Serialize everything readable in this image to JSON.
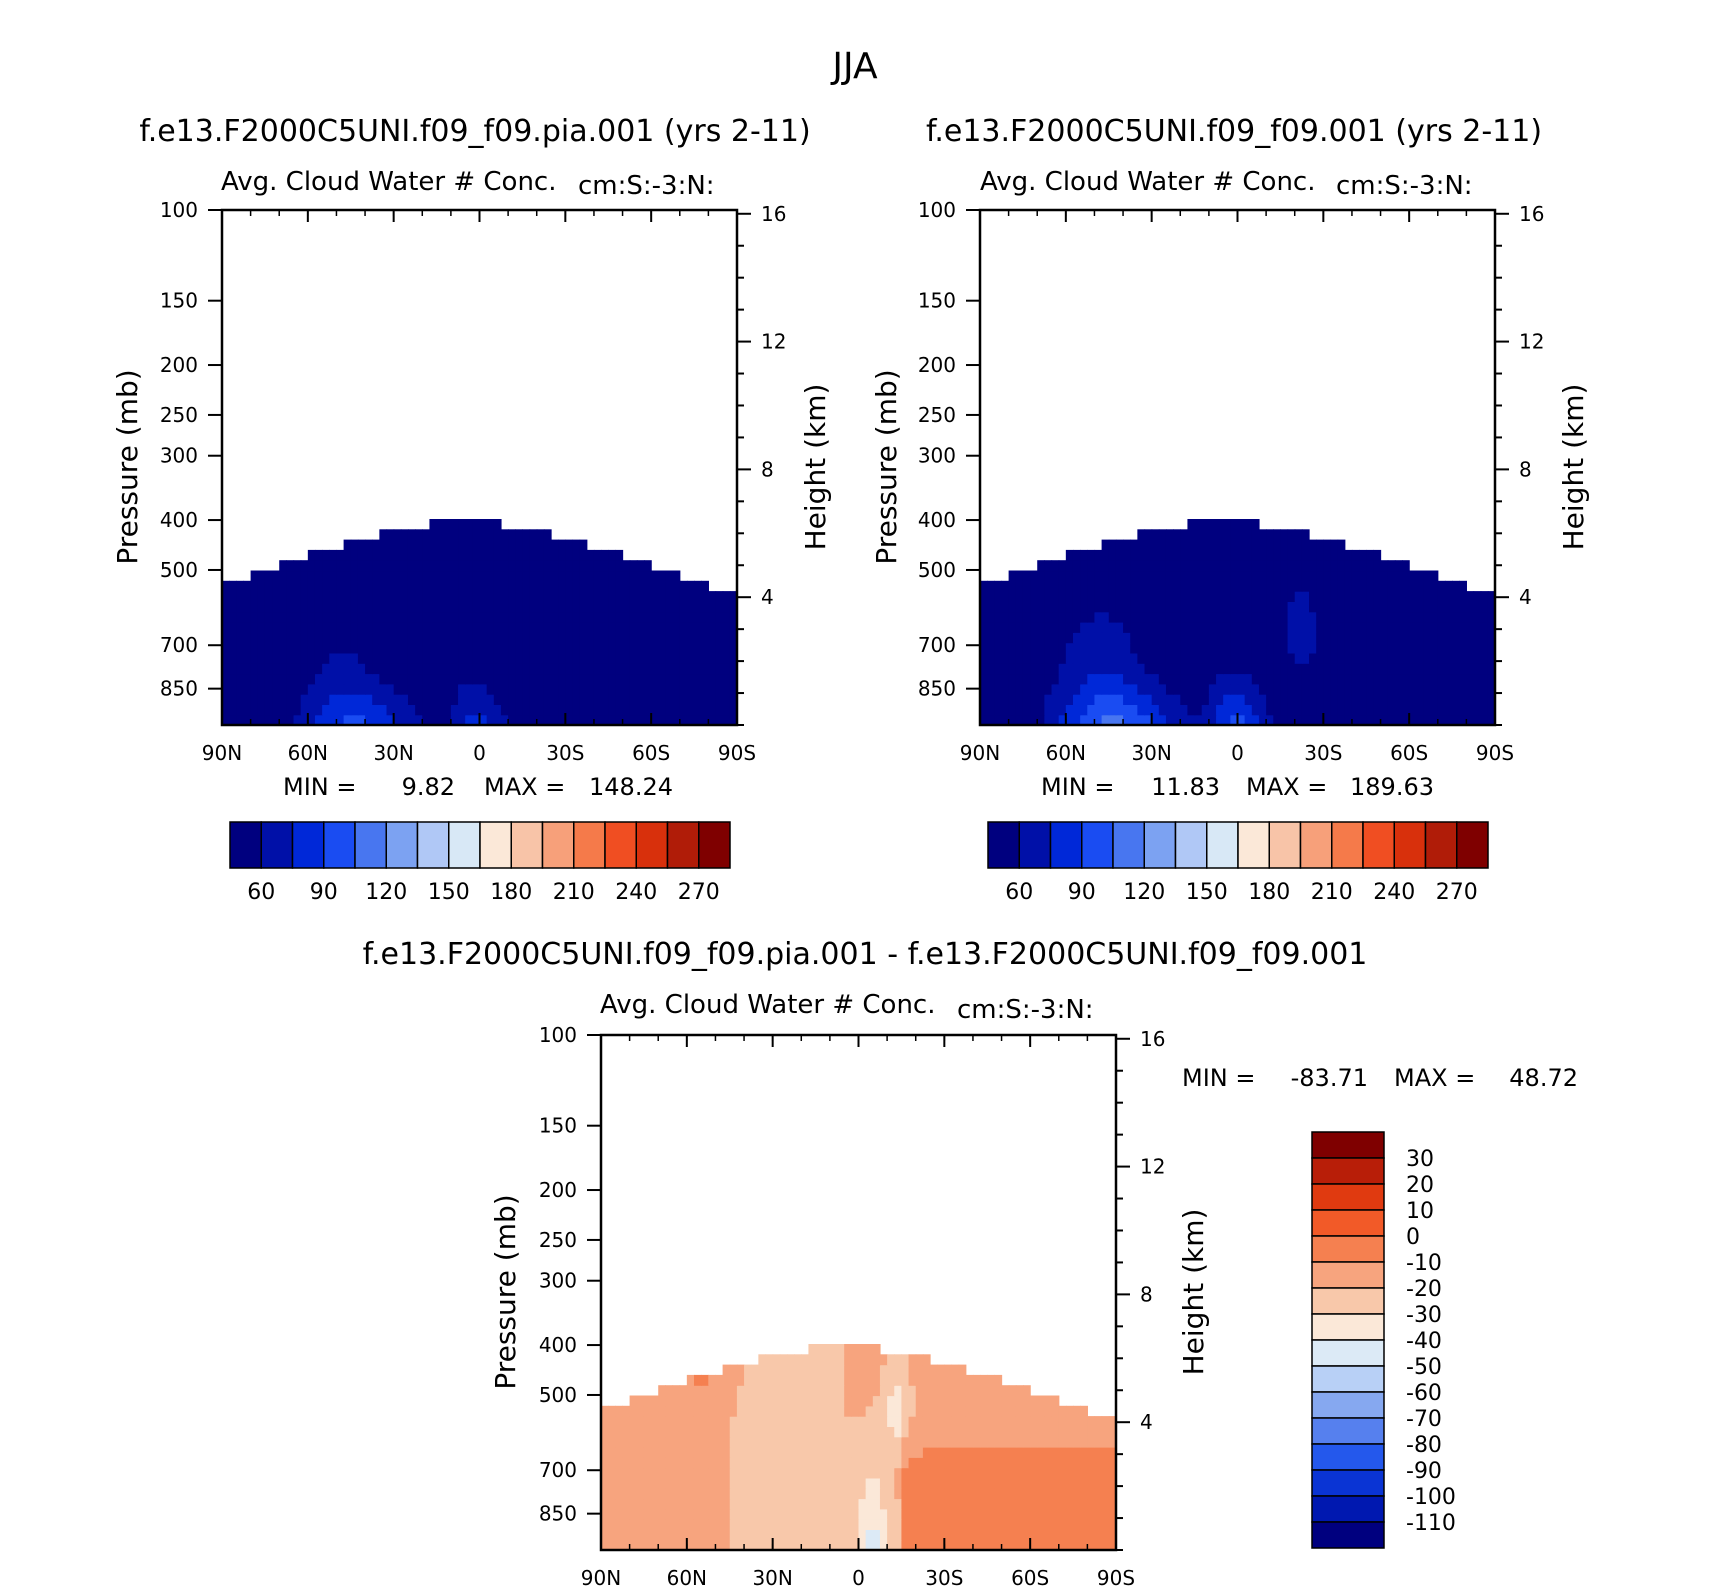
{
  "figure_title": "JJA",
  "top_panels": [
    {
      "case": "f.e13.F2000C5UNI.f09_f09.pia.001 (yrs 2-11)",
      "variable": "Avg. Cloud Water # Conc.",
      "units": "cm:S:-3:N:",
      "min_label": "MIN =",
      "min_value": "9.82",
      "max_label": "MAX =",
      "max_value": "148.24"
    },
    {
      "case": "f.e13.F2000C5UNI.f09_f09.001 (yrs 2-11)",
      "variable": "Avg. Cloud Water # Conc.",
      "units": "cm:S:-3:N:",
      "min_label": "MIN =",
      "min_value": "11.83",
      "max_label": "MAX =",
      "max_value": "189.63"
    }
  ],
  "diff_panel": {
    "case": "f.e13.F2000C5UNI.f09_f09.pia.001 - f.e13.F2000C5UNI.f09_f09.001",
    "variable": "Avg. Cloud Water # Conc.",
    "units": "cm:S:-3:N:",
    "min_label": "MIN =",
    "min_value": "-83.71",
    "max_label": "MAX =",
    "max_value": "48.72"
  },
  "chart_data": [
    {
      "type": "heatmap",
      "title": "Avg. Cloud Water # Conc. (f.e13.F2000C5UNI.f09_f09.pia.001)",
      "xlabel": "",
      "ylabel": "Pressure (mb)",
      "ylabel_right": "Height (km)",
      "x_ticks": [
        "90N",
        "60N",
        "30N",
        "0",
        "30S",
        "60S",
        "90S"
      ],
      "y_ticks": [
        "100",
        "150",
        "200",
        "250",
        "300",
        "400",
        "500",
        "700",
        "850"
      ],
      "height_ticks": [
        "4",
        "8",
        "12",
        "16"
      ],
      "xlim": [
        90,
        -90
      ],
      "ylim": [
        1000,
        100
      ],
      "levels": [
        60,
        90,
        120,
        150,
        180,
        210,
        240,
        270
      ],
      "colorbar_labels": [
        "60",
        "90",
        "120",
        "150",
        "180",
        "210",
        "240",
        "270"
      ],
      "min": 9.82,
      "max": 148.24
    },
    {
      "type": "heatmap",
      "title": "Avg. Cloud Water # Conc. (f.e13.F2000C5UNI.f09_f09.001)",
      "xlabel": "",
      "ylabel": "Pressure (mb)",
      "ylabel_right": "Height (km)",
      "x_ticks": [
        "90N",
        "60N",
        "30N",
        "0",
        "30S",
        "60S",
        "90S"
      ],
      "y_ticks": [
        "100",
        "150",
        "200",
        "250",
        "300",
        "400",
        "500",
        "700",
        "850"
      ],
      "height_ticks": [
        "4",
        "8",
        "12",
        "16"
      ],
      "xlim": [
        90,
        -90
      ],
      "ylim": [
        1000,
        100
      ],
      "levels": [
        60,
        90,
        120,
        150,
        180,
        210,
        240,
        270
      ],
      "colorbar_labels": [
        "60",
        "90",
        "120",
        "150",
        "180",
        "210",
        "240",
        "270"
      ],
      "min": 11.83,
      "max": 189.63
    },
    {
      "type": "heatmap",
      "title": "Avg. Cloud Water # Conc. (difference)",
      "xlabel": "",
      "ylabel": "Pressure (mb)",
      "ylabel_right": "Height (km)",
      "x_ticks": [
        "90N",
        "60N",
        "30N",
        "0",
        "30S",
        "60S",
        "90S"
      ],
      "y_ticks": [
        "100",
        "150",
        "200",
        "250",
        "300",
        "400",
        "500",
        "700",
        "850"
      ],
      "height_ticks": [
        "4",
        "8",
        "12",
        "16"
      ],
      "xlim": [
        90,
        -90
      ],
      "ylim": [
        1000,
        100
      ],
      "levels": [
        -110,
        -100,
        -90,
        -80,
        -70,
        -60,
        -50,
        -40,
        -30,
        -20,
        -10,
        0,
        10,
        20,
        30
      ],
      "colorbar_labels": [
        "30",
        "20",
        "10",
        "0",
        "-10",
        "-20",
        "-30",
        "-40",
        "-50",
        "-60",
        "-70",
        "-80",
        "-90",
        "-100",
        "-110"
      ],
      "min": -83.71,
      "max": 48.72
    }
  ],
  "colors": {
    "abs_palette": [
      "#00007f",
      "#0010a8",
      "#0028d8",
      "#1a4cf2",
      "#4876f0",
      "#7ca2f2",
      "#b0c8f6",
      "#d8e8f6",
      "#fbe8d8",
      "#f8c4a8",
      "#f7a07a",
      "#f57a4a",
      "#f04e22",
      "#d8300c",
      "#b01c08",
      "#7f0000"
    ],
    "diff_palette": [
      "#00007f",
      "#0018b0",
      "#0a34d4",
      "#2458ec",
      "#5680ee",
      "#86a8f0",
      "#b8d0f6",
      "#dceaf6",
      "#fbe8d8",
      "#f8c8aa",
      "#f7a47e",
      "#f58050",
      "#f25a28",
      "#e03a10",
      "#b81e08",
      "#7f0000"
    ]
  }
}
